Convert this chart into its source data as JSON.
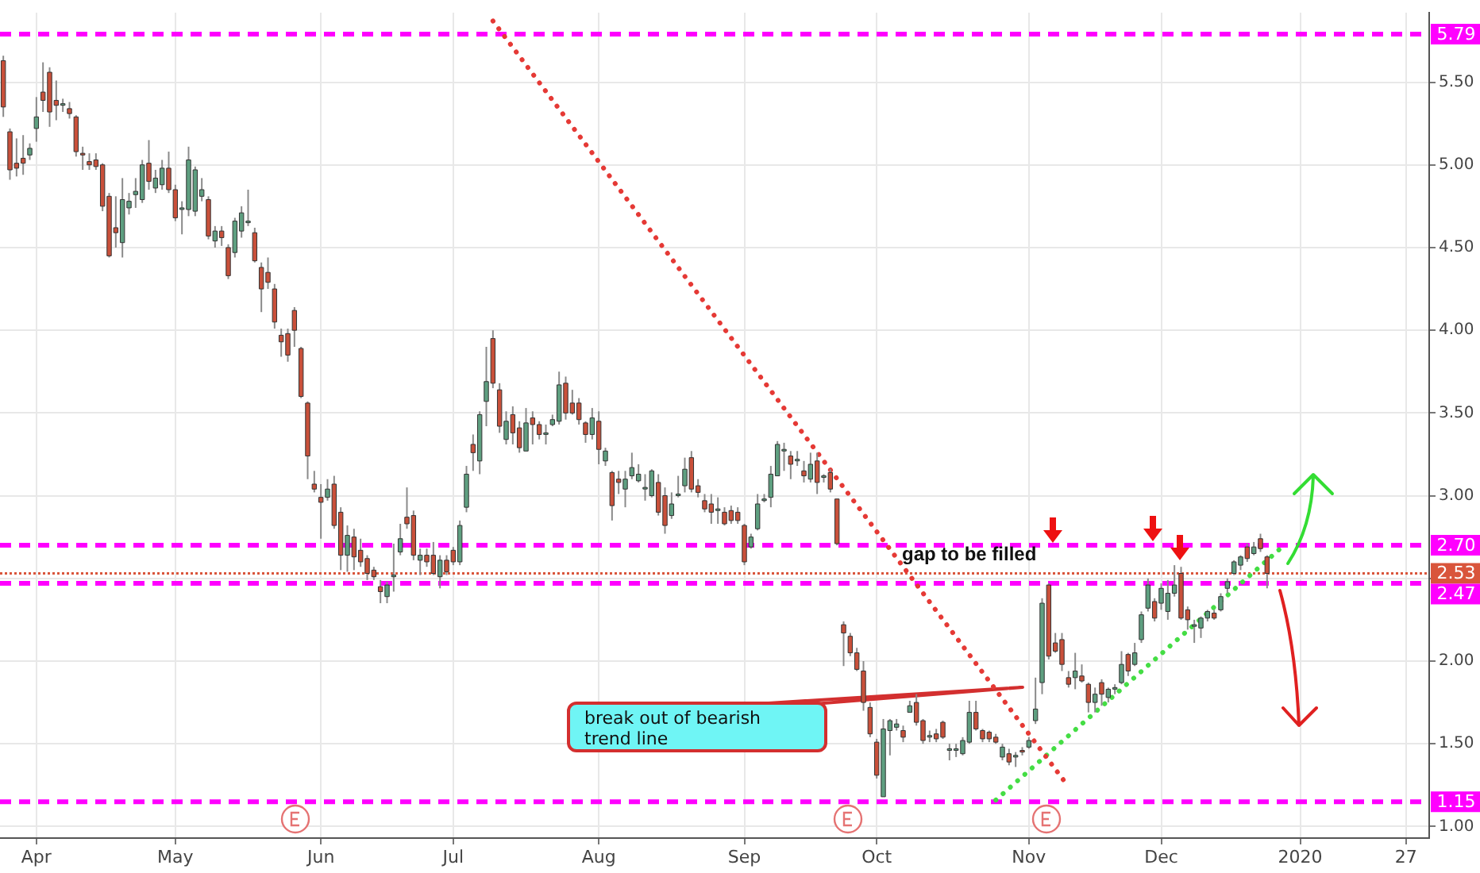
{
  "chart_data": {
    "type": "candlestick",
    "categories": [
      null,
      null,
      null,
      null,
      null,
      "Apr",
      null,
      null,
      null,
      null,
      null,
      null,
      null,
      null,
      null,
      null,
      null,
      null,
      null,
      null,
      null,
      null,
      null,
      null,
      null,
      null,
      "May",
      null,
      null,
      null,
      null,
      null,
      null,
      null,
      null,
      null,
      null,
      null,
      null,
      null,
      null,
      null,
      null,
      null,
      null,
      null,
      null,
      null,
      "Jun",
      null,
      null,
      null,
      null,
      null,
      null,
      null,
      null,
      null,
      null,
      null,
      null,
      null,
      null,
      null,
      null,
      null,
      null,
      null,
      "Jul",
      null,
      null,
      null,
      null,
      null,
      null,
      null,
      null,
      null,
      null,
      null,
      null,
      null,
      null,
      null,
      null,
      null,
      null,
      null,
      null,
      null,
      "Aug",
      null,
      null,
      null,
      null,
      null,
      null,
      null,
      null,
      null,
      null,
      null,
      null,
      null,
      null,
      null,
      null,
      null,
      null,
      null,
      null,
      null,
      "Sep",
      null,
      null,
      null,
      null,
      null,
      null,
      null,
      null,
      null,
      null,
      null,
      null,
      null,
      null,
      null,
      null,
      null,
      null,
      null,
      "Oct",
      null,
      null,
      null,
      null,
      null,
      null,
      null,
      null,
      null,
      null,
      null,
      null,
      null,
      null,
      null,
      null,
      null,
      null,
      null,
      null,
      null,
      null,
      "Nov",
      null,
      null,
      null,
      null,
      null,
      null,
      null,
      null,
      null,
      null,
      null,
      null,
      null,
      null,
      null,
      null,
      null,
      null,
      null,
      "Dec",
      null,
      null,
      null,
      null,
      null,
      null,
      null,
      null,
      null,
      null,
      null,
      null,
      null,
      null,
      null,
      null,
      null,
      null,
      null,
      null,
      "2020",
      null,
      null,
      null,
      null,
      null,
      null,
      null,
      null,
      null,
      null,
      null,
      null,
      null,
      null,
      null,
      "27",
      null,
      null,
      null
    ],
    "ohlc": [
      [
        5.63,
        5.66,
        5.29,
        5.35
      ],
      [
        5.2,
        5.22,
        4.91,
        4.97
      ],
      [
        5.01,
        5.16,
        4.93,
        4.98
      ],
      [
        5.04,
        5.18,
        4.94,
        5.01
      ],
      [
        5.06,
        5.13,
        5.03,
        5.1
      ],
      [
        5.22,
        5.41,
        5.14,
        5.29
      ],
      [
        5.44,
        5.62,
        5.32,
        5.39
      ],
      [
        5.56,
        5.59,
        5.23,
        5.32
      ],
      [
        5.39,
        5.51,
        5.27,
        5.36
      ],
      [
        5.37,
        5.4,
        5.32,
        5.37
      ],
      [
        5.34,
        5.38,
        5.28,
        5.31
      ],
      [
        5.29,
        5.3,
        5.05,
        5.08
      ],
      [
        5.07,
        5.11,
        4.97,
        5.06
      ],
      [
        5.02,
        5.07,
        4.97,
        5.0
      ],
      [
        5.03,
        5.07,
        4.97,
        4.99
      ],
      [
        5.0,
        5.01,
        4.72,
        4.75
      ],
      [
        4.81,
        4.83,
        4.44,
        4.45
      ],
      [
        4.62,
        4.81,
        4.5,
        4.59
      ],
      [
        4.53,
        4.92,
        4.44,
        4.79
      ],
      [
        4.74,
        4.83,
        4.7,
        4.78
      ],
      [
        4.82,
        4.92,
        4.74,
        4.84
      ],
      [
        4.79,
        5.03,
        4.77,
        5.0
      ],
      [
        5.01,
        5.15,
        4.85,
        4.9
      ],
      [
        4.86,
        4.97,
        4.83,
        4.92
      ],
      [
        4.88,
        5.03,
        4.85,
        4.98
      ],
      [
        4.98,
        5.08,
        4.83,
        4.85
      ],
      [
        4.85,
        4.88,
        4.66,
        4.68
      ],
      [
        4.74,
        4.78,
        4.58,
        4.74
      ],
      [
        4.73,
        5.11,
        4.69,
        5.03
      ],
      [
        4.72,
        4.99,
        4.69,
        4.97
      ],
      [
        4.81,
        4.92,
        4.78,
        4.85
      ],
      [
        4.79,
        4.81,
        4.55,
        4.57
      ],
      [
        4.54,
        4.63,
        4.5,
        4.6
      ],
      [
        4.6,
        4.63,
        4.51,
        4.56
      ],
      [
        4.5,
        4.52,
        4.31,
        4.33
      ],
      [
        4.47,
        4.68,
        4.44,
        4.66
      ],
      [
        4.6,
        4.75,
        4.56,
        4.71
      ],
      [
        4.66,
        4.85,
        4.63,
        4.66
      ],
      [
        4.59,
        4.62,
        4.41,
        4.42
      ],
      [
        4.38,
        4.41,
        4.11,
        4.25
      ],
      [
        4.35,
        4.44,
        4.25,
        4.29
      ],
      [
        4.25,
        4.28,
        4.01,
        4.05
      ],
      [
        3.97,
        4.01,
        3.84,
        3.93
      ],
      [
        3.98,
        4.01,
        3.81,
        3.85
      ],
      [
        4.12,
        4.14,
        3.9,
        4.0
      ],
      [
        3.89,
        3.9,
        3.59,
        3.6
      ],
      [
        3.56,
        3.57,
        3.1,
        3.24
      ],
      [
        3.07,
        3.15,
        3.02,
        3.04
      ],
      [
        2.99,
        3.07,
        2.74,
        2.96
      ],
      [
        2.99,
        3.1,
        2.97,
        3.04
      ],
      [
        3.07,
        3.12,
        2.8,
        2.82
      ],
      [
        2.9,
        2.93,
        2.55,
        2.64
      ],
      [
        2.64,
        2.82,
        2.54,
        2.76
      ],
      [
        2.75,
        2.8,
        2.55,
        2.63
      ],
      [
        2.67,
        2.74,
        2.57,
        2.6
      ],
      [
        2.62,
        2.64,
        2.49,
        2.53
      ],
      [
        2.55,
        2.57,
        2.49,
        2.51
      ],
      [
        2.45,
        2.49,
        2.35,
        2.42
      ],
      [
        2.39,
        2.48,
        2.35,
        2.46
      ],
      [
        2.51,
        2.71,
        2.42,
        2.52
      ],
      [
        2.66,
        2.83,
        2.64,
        2.74
      ],
      [
        2.87,
        3.05,
        2.8,
        2.83
      ],
      [
        2.88,
        2.91,
        2.61,
        2.64
      ],
      [
        2.61,
        2.68,
        2.52,
        2.64
      ],
      [
        2.64,
        2.68,
        2.57,
        2.6
      ],
      [
        2.64,
        2.72,
        2.52,
        2.53
      ],
      [
        2.51,
        2.64,
        2.44,
        2.61
      ],
      [
        2.61,
        2.64,
        2.52,
        2.54
      ],
      [
        2.67,
        2.69,
        2.58,
        2.6
      ],
      [
        2.6,
        2.85,
        2.58,
        2.82
      ],
      [
        2.93,
        3.18,
        2.9,
        3.13
      ],
      [
        3.31,
        3.37,
        3.15,
        3.26
      ],
      [
        3.21,
        3.51,
        3.13,
        3.49
      ],
      [
        3.57,
        3.9,
        3.42,
        3.69
      ],
      [
        3.95,
        4.0,
        3.65,
        3.68
      ],
      [
        3.64,
        3.68,
        3.38,
        3.42
      ],
      [
        3.34,
        3.51,
        3.31,
        3.45
      ],
      [
        3.49,
        3.54,
        3.31,
        3.38
      ],
      [
        3.41,
        3.45,
        3.26,
        3.29
      ],
      [
        3.27,
        3.53,
        3.27,
        3.44
      ],
      [
        3.47,
        3.51,
        3.31,
        3.43
      ],
      [
        3.43,
        3.45,
        3.34,
        3.37
      ],
      [
        3.38,
        3.43,
        3.31,
        3.38
      ],
      [
        3.43,
        3.49,
        3.42,
        3.46
      ],
      [
        3.45,
        3.75,
        3.43,
        3.67
      ],
      [
        3.68,
        3.72,
        3.46,
        3.5
      ],
      [
        3.56,
        3.64,
        3.49,
        3.5
      ],
      [
        3.56,
        3.59,
        3.43,
        3.46
      ],
      [
        3.44,
        3.45,
        3.32,
        3.37
      ],
      [
        3.37,
        3.53,
        3.34,
        3.47
      ],
      [
        3.45,
        3.51,
        3.19,
        3.28
      ],
      [
        3.21,
        3.29,
        3.18,
        3.27
      ],
      [
        3.14,
        3.15,
        2.85,
        2.94
      ],
      [
        3.1,
        3.15,
        3.01,
        3.08
      ],
      [
        3.04,
        3.15,
        2.93,
        3.1
      ],
      [
        3.12,
        3.26,
        3.1,
        3.17
      ],
      [
        3.09,
        3.19,
        3.08,
        3.13
      ],
      [
        3.05,
        3.13,
        2.97,
        3.05
      ],
      [
        3.0,
        3.16,
        2.99,
        3.15
      ],
      [
        3.08,
        3.13,
        2.88,
        2.9
      ],
      [
        3.0,
        3.05,
        2.77,
        2.82
      ],
      [
        2.88,
        3.02,
        2.86,
        2.95
      ],
      [
        3.01,
        3.12,
        2.99,
        3.01
      ],
      [
        3.06,
        3.23,
        3.02,
        3.16
      ],
      [
        3.23,
        3.27,
        3.02,
        3.04
      ],
      [
        3.06,
        3.1,
        2.99,
        3.02
      ],
      [
        2.97,
        3.01,
        2.9,
        2.92
      ],
      [
        2.95,
        3.01,
        2.83,
        2.9
      ],
      [
        2.92,
        2.99,
        2.83,
        2.92
      ],
      [
        2.9,
        2.93,
        2.82,
        2.83
      ],
      [
        2.91,
        2.94,
        2.83,
        2.85
      ],
      [
        2.9,
        2.93,
        2.83,
        2.85
      ],
      [
        2.82,
        2.83,
        2.58,
        2.6
      ],
      [
        2.69,
        2.77,
        2.68,
        2.75
      ],
      [
        2.8,
        3.01,
        2.79,
        2.95
      ],
      [
        2.98,
        3.01,
        2.96,
        2.98
      ],
      [
        2.99,
        3.18,
        2.93,
        3.13
      ],
      [
        3.12,
        3.33,
        3.12,
        3.31
      ],
      [
        3.28,
        3.32,
        3.15,
        3.28
      ],
      [
        3.24,
        3.27,
        3.1,
        3.19
      ],
      [
        3.22,
        3.27,
        3.18,
        3.22
      ],
      [
        3.15,
        3.21,
        3.08,
        3.12
      ],
      [
        3.1,
        3.26,
        3.08,
        3.19
      ],
      [
        3.21,
        3.26,
        3.01,
        3.08
      ],
      [
        3.12,
        3.13,
        3.08,
        3.12
      ],
      [
        3.14,
        3.16,
        3.02,
        3.04
      ],
      [
        2.98,
        2.98,
        2.7,
        2.71
      ],
      [
        2.22,
        2.24,
        1.97,
        2.17
      ],
      [
        2.15,
        2.17,
        2.03,
        2.05
      ],
      [
        2.05,
        2.08,
        1.94,
        1.95
      ],
      [
        1.94,
        2.0,
        1.7,
        1.75
      ],
      [
        1.72,
        1.75,
        1.54,
        1.56
      ],
      [
        1.51,
        1.53,
        1.29,
        1.31
      ],
      [
        1.18,
        1.65,
        1.18,
        1.59
      ],
      [
        1.58,
        1.65,
        1.43,
        1.64
      ],
      [
        1.6,
        1.65,
        1.58,
        1.62
      ],
      [
        1.58,
        1.61,
        1.51,
        1.54
      ],
      [
        1.69,
        1.76,
        1.69,
        1.73
      ],
      [
        1.75,
        1.8,
        1.61,
        1.63
      ],
      [
        1.64,
        1.65,
        1.5,
        1.52
      ],
      [
        1.55,
        1.58,
        1.51,
        1.55
      ],
      [
        1.56,
        1.59,
        1.51,
        1.53
      ],
      [
        1.63,
        1.64,
        1.53,
        1.54
      ],
      [
        1.47,
        1.5,
        1.4,
        1.47
      ],
      [
        1.47,
        1.5,
        1.42,
        1.47
      ],
      [
        1.44,
        1.54,
        1.43,
        1.52
      ],
      [
        1.51,
        1.76,
        1.5,
        1.69
      ],
      [
        1.69,
        1.76,
        1.58,
        1.59
      ],
      [
        1.58,
        1.59,
        1.51,
        1.53
      ],
      [
        1.57,
        1.58,
        1.51,
        1.53
      ],
      [
        1.54,
        1.56,
        1.5,
        1.51
      ],
      [
        1.42,
        1.5,
        1.4,
        1.48
      ],
      [
        1.44,
        1.47,
        1.37,
        1.39
      ],
      [
        1.42,
        1.45,
        1.36,
        1.43
      ],
      [
        1.46,
        1.48,
        1.43,
        1.45
      ],
      [
        1.48,
        1.54,
        1.47,
        1.52
      ],
      [
        1.64,
        1.9,
        1.62,
        1.71
      ],
      [
        1.87,
        2.38,
        1.8,
        2.35
      ],
      [
        2.46,
        2.47,
        2.01,
        2.03
      ],
      [
        2.11,
        2.17,
        2.05,
        2.06
      ],
      [
        2.13,
        2.17,
        1.94,
        1.98
      ],
      [
        1.9,
        1.94,
        1.84,
        1.86
      ],
      [
        1.9,
        2.05,
        1.83,
        1.94
      ],
      [
        1.91,
        1.98,
        1.87,
        1.88
      ],
      [
        1.86,
        1.87,
        1.69,
        1.75
      ],
      [
        1.75,
        1.84,
        1.69,
        1.8
      ],
      [
        1.87,
        1.89,
        1.73,
        1.8
      ],
      [
        1.78,
        1.84,
        1.75,
        1.83
      ],
      [
        1.84,
        1.86,
        1.8,
        1.84
      ],
      [
        1.87,
        2.06,
        1.86,
        1.98
      ],
      [
        2.04,
        2.05,
        1.91,
        1.94
      ],
      [
        1.98,
        2.11,
        1.97,
        2.05
      ],
      [
        2.13,
        2.3,
        2.11,
        2.28
      ],
      [
        2.32,
        2.5,
        2.3,
        2.46
      ],
      [
        2.36,
        2.38,
        2.24,
        2.26
      ],
      [
        2.35,
        2.47,
        2.31,
        2.44
      ],
      [
        2.3,
        2.49,
        2.25,
        2.41
      ],
      [
        2.41,
        2.58,
        2.39,
        2.46
      ],
      [
        2.53,
        2.57,
        2.25,
        2.26
      ],
      [
        2.31,
        2.33,
        2.19,
        2.25
      ],
      [
        2.22,
        2.25,
        2.11,
        2.22
      ],
      [
        2.2,
        2.27,
        2.14,
        2.26
      ],
      [
        2.26,
        2.31,
        2.24,
        2.3
      ],
      [
        2.29,
        2.31,
        2.25,
        2.26
      ],
      [
        2.31,
        2.41,
        2.3,
        2.39
      ],
      [
        2.44,
        2.5,
        2.41,
        2.48
      ],
      [
        2.53,
        2.61,
        2.52,
        2.6
      ],
      [
        2.58,
        2.64,
        2.55,
        2.63
      ],
      [
        2.69,
        2.71,
        2.6,
        2.62
      ],
      [
        2.65,
        2.72,
        2.64,
        2.69
      ],
      [
        2.74,
        2.77,
        2.66,
        2.68
      ],
      [
        2.63,
        2.64,
        2.44,
        2.53
      ],
      null,
      null,
      null,
      null,
      null,
      null,
      null,
      null,
      null,
      null,
      null,
      null,
      null,
      null,
      null,
      null,
      null,
      null,
      null,
      null,
      null,
      null,
      null,
      null
    ],
    "series": [
      {
        "type": "line",
        "color": "#e53935",
        "line_style": "dotted",
        "values": [
          null,
          null,
          null,
          null,
          null,
          null,
          null,
          null,
          null,
          null,
          null,
          null,
          null,
          null,
          null,
          null,
          null,
          null,
          null,
          null,
          null,
          null,
          null,
          null,
          null,
          null,
          null,
          null,
          null,
          null,
          null,
          null,
          null,
          null,
          null,
          null,
          null,
          null,
          null,
          null,
          null,
          null,
          null,
          null,
          null,
          null,
          null,
          null,
          null,
          null,
          null,
          null,
          null,
          null,
          null,
          null,
          null,
          null,
          null,
          null,
          null,
          null,
          null,
          null,
          null,
          null,
          null,
          null,
          null,
          null,
          null,
          null,
          null,
          null,
          5.87,
          null,
          null,
          null,
          null,
          null,
          null,
          null,
          null,
          null,
          null,
          null,
          null,
          null,
          null,
          null,
          null,
          null,
          null,
          null,
          null,
          null,
          null,
          null,
          null,
          null,
          null,
          null,
          null,
          null,
          null,
          null,
          null,
          null,
          null,
          null,
          null,
          null,
          null,
          null,
          null,
          null,
          null,
          null,
          null,
          null,
          null,
          null,
          null,
          null,
          null,
          null,
          null,
          null,
          null,
          null,
          null,
          null,
          null,
          null,
          null,
          null,
          null,
          null,
          null,
          null,
          null,
          null,
          null,
          null,
          null,
          null,
          null,
          null,
          null,
          null,
          null,
          null,
          null,
          null,
          null,
          null,
          null,
          null,
          null,
          null,
          null,
          1.24,
          null,
          null,
          null,
          null,
          null,
          null,
          null,
          null,
          null,
          null,
          null,
          null,
          null,
          null,
          null,
          null,
          null,
          null,
          null,
          null,
          null,
          null,
          null,
          null,
          null,
          null,
          null,
          null,
          null,
          null,
          null,
          null,
          null,
          null,
          null,
          null,
          null,
          null,
          null,
          null,
          null,
          null,
          null,
          null,
          null,
          null,
          null,
          null,
          null,
          null,
          null,
          null,
          null,
          null
        ]
      },
      {
        "type": "line",
        "color": "#44dd44",
        "line_style": "dotted",
        "values": [
          null,
          null,
          null,
          null,
          null,
          null,
          null,
          null,
          null,
          null,
          null,
          null,
          null,
          null,
          null,
          null,
          null,
          null,
          null,
          null,
          null,
          null,
          null,
          null,
          null,
          null,
          null,
          null,
          null,
          null,
          null,
          null,
          null,
          null,
          null,
          null,
          null,
          null,
          null,
          null,
          null,
          null,
          null,
          null,
          null,
          null,
          null,
          null,
          null,
          null,
          null,
          null,
          null,
          null,
          null,
          null,
          null,
          null,
          null,
          null,
          null,
          null,
          null,
          null,
          null,
          null,
          null,
          null,
          null,
          null,
          null,
          null,
          null,
          null,
          null,
          null,
          null,
          null,
          null,
          null,
          null,
          null,
          null,
          null,
          null,
          null,
          null,
          null,
          null,
          null,
          null,
          null,
          null,
          null,
          null,
          null,
          null,
          null,
          null,
          null,
          null,
          null,
          null,
          null,
          null,
          null,
          null,
          null,
          null,
          null,
          null,
          null,
          null,
          null,
          null,
          null,
          null,
          null,
          null,
          null,
          null,
          null,
          null,
          null,
          null,
          null,
          null,
          null,
          null,
          null,
          null,
          null,
          null,
          null,
          null,
          null,
          null,
          null,
          null,
          null,
          null,
          null,
          null,
          null,
          null,
          null,
          null,
          null,
          null,
          null,
          1.16,
          null,
          null,
          null,
          null,
          null,
          null,
          null,
          null,
          null,
          null,
          null,
          null,
          null,
          null,
          null,
          null,
          null,
          null,
          null,
          null,
          null,
          null,
          null,
          null,
          null,
          null,
          null,
          null,
          null,
          null,
          null,
          null,
          null,
          null,
          null,
          null,
          null,
          null,
          null,
          null,
          null,
          null,
          2.68,
          null,
          null,
          null,
          null,
          null,
          null,
          null,
          null,
          null,
          null,
          null,
          null,
          null,
          null,
          null,
          null,
          null,
          null,
          null,
          null,
          null,
          null
        ]
      }
    ],
    "ylim": [
      0.93,
      5.92
    ],
    "yticks": [
      {
        "value": 1,
        "label": "1.00"
      },
      {
        "value": 1.5,
        "label": "1.50"
      },
      {
        "value": 2,
        "label": "2.00"
      },
      {
        "value": 2.5,
        "label": null
      },
      {
        "value": 3,
        "label": "3.00"
      },
      {
        "value": 3.5,
        "label": "3.50"
      },
      {
        "value": 4,
        "label": "4.00"
      },
      {
        "value": 4.5,
        "label": "4.50"
      },
      {
        "value": 5,
        "label": "5.00"
      },
      {
        "value": 5.5,
        "label": "5.50"
      }
    ],
    "ref_lines": [
      {
        "axis": "y",
        "value": 5.79,
        "label": "5.79",
        "color": "#ff00ff",
        "line_style": "dashed"
      },
      {
        "axis": "y",
        "value": 2.7,
        "label": "2.70",
        "color": "#ff00ff",
        "line_style": "dashed"
      },
      {
        "axis": "y",
        "value": 2.53,
        "label": "2.53",
        "color": "#d9553b",
        "line_style": "dotted"
      },
      {
        "axis": "y",
        "value": 2.47,
        "label": "2.47",
        "color": "#ff00ff",
        "line_style": "dashed"
      },
      {
        "axis": "y",
        "value": 1.15,
        "label": "1.15",
        "color": "#ff00ff",
        "line_style": "dashed"
      }
    ],
    "annotations": [
      "gap to be filled",
      "break out of bearish trend line"
    ],
    "grid": true,
    "legend": false,
    "marker": "none"
  }
}
